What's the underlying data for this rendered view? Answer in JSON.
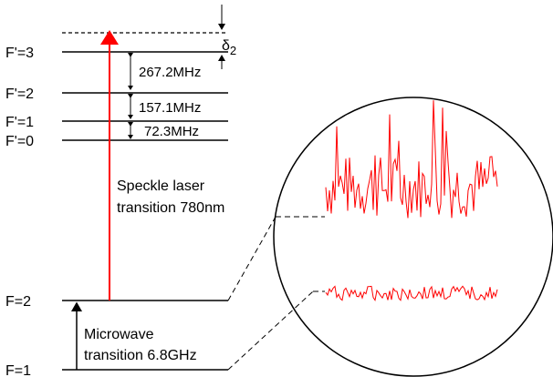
{
  "levels": {
    "f3p": "F'=3",
    "f2p": "F'=2",
    "f1p": "F'=1",
    "f0p": "F'=0",
    "f2": "F=2",
    "f1": "F=1"
  },
  "splittings": {
    "s32": "267.2MHz",
    "s21": "157.1MHz",
    "s10": "72.3MHz"
  },
  "detuning": {
    "symbol": "δ",
    "subscript": "2"
  },
  "laser": {
    "line1": "Speckle laser",
    "line2": "transition 780nm",
    "color": "#ff0000"
  },
  "microwave": {
    "line1": "Microwave",
    "line2": "transition 6.8GHz"
  },
  "colors": {
    "lines": "#000000",
    "signal": "#ff0000"
  }
}
